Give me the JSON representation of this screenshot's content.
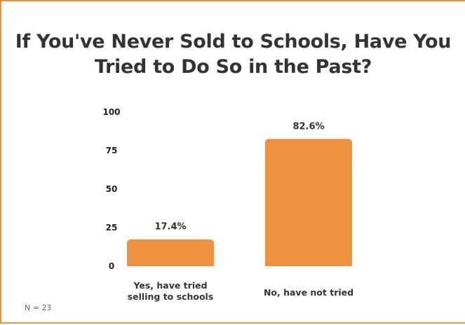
{
  "chart_data": {
    "type": "bar",
    "title_lines": [
      "If You've Never Sold to Schools, Have You",
      "Tried to Do So in the Past?"
    ],
    "categories": [
      [
        "Yes, have tried",
        "selling to schools"
      ],
      [
        "No, have not tried"
      ]
    ],
    "values": [
      17.4,
      82.6
    ],
    "data_labels": [
      "17.4%",
      "82.6%"
    ],
    "ylim": [
      0,
      100
    ],
    "yticks": [
      0,
      25,
      50,
      75,
      100
    ],
    "grid": false,
    "legend": "none",
    "bar_color": "#ee913f"
  },
  "footnote": "N = 23",
  "colors": {
    "accent": "#ee913f",
    "text": "#333333"
  }
}
